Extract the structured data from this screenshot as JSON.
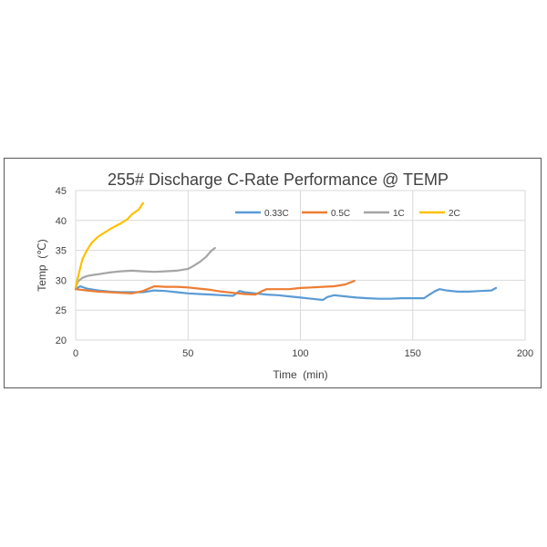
{
  "chart_data": {
    "type": "line",
    "title": "255#  Discharge C-Rate Performance @ TEMP",
    "xlabel": "Time  (min)",
    "ylabel": "Temp  (℃)",
    "xlim": [
      0,
      200
    ],
    "ylim": [
      20,
      45
    ],
    "xticks": [
      0,
      50,
      100,
      150,
      200
    ],
    "yticks": [
      20,
      25,
      30,
      35,
      40,
      45
    ],
    "grid": true,
    "legend_position": "top-right",
    "series": [
      {
        "name": "0.33C",
        "color": "#5B9BD5",
        "x": [
          0,
          2,
          5,
          10,
          15,
          20,
          25,
          30,
          35,
          40,
          45,
          50,
          55,
          60,
          65,
          70,
          73,
          75,
          80,
          85,
          90,
          95,
          100,
          105,
          110,
          112,
          115,
          120,
          125,
          130,
          135,
          140,
          145,
          150,
          155,
          157,
          160,
          162,
          165,
          170,
          175,
          180,
          185,
          187
        ],
        "y": [
          28.5,
          29.0,
          28.6,
          28.3,
          28.1,
          28.0,
          28.0,
          28.0,
          28.3,
          28.2,
          28.0,
          27.8,
          27.7,
          27.6,
          27.5,
          27.4,
          28.2,
          28.0,
          27.8,
          27.6,
          27.5,
          27.3,
          27.1,
          26.9,
          26.7,
          27.2,
          27.5,
          27.3,
          27.1,
          27.0,
          26.9,
          26.9,
          27.0,
          27.0,
          27.0,
          27.5,
          28.2,
          28.5,
          28.3,
          28.1,
          28.1,
          28.2,
          28.3,
          28.7
        ]
      },
      {
        "name": "0.5C",
        "color": "#ED7D31",
        "x": [
          0,
          5,
          10,
          15,
          20,
          25,
          30,
          35,
          40,
          45,
          50,
          55,
          60,
          65,
          70,
          75,
          80,
          83,
          85,
          90,
          95,
          100,
          105,
          110,
          115,
          120,
          122,
          124
        ],
        "y": [
          28.5,
          28.3,
          28.1,
          28.0,
          27.9,
          27.8,
          28.2,
          29.0,
          28.9,
          28.9,
          28.8,
          28.6,
          28.4,
          28.1,
          27.9,
          27.7,
          27.6,
          28.2,
          28.5,
          28.5,
          28.5,
          28.7,
          28.8,
          28.9,
          29.0,
          29.3,
          29.6,
          29.9
        ]
      },
      {
        "name": "1C",
        "color": "#A5A5A5",
        "x": [
          0,
          1,
          3,
          5,
          8,
          10,
          15,
          20,
          25,
          30,
          35,
          40,
          45,
          50,
          52,
          55,
          58,
          60,
          62
        ],
        "y": [
          28.8,
          29.8,
          30.4,
          30.7,
          30.9,
          31.0,
          31.3,
          31.5,
          31.6,
          31.5,
          31.4,
          31.5,
          31.6,
          31.9,
          32.3,
          33.0,
          33.9,
          34.8,
          35.4
        ]
      },
      {
        "name": "2C",
        "color": "#FFC000",
        "x": [
          0,
          1,
          2,
          3,
          5,
          7,
          10,
          13,
          16,
          20,
          23,
          25,
          28,
          30
        ],
        "y": [
          28.8,
          30.5,
          32.0,
          33.5,
          35.0,
          36.2,
          37.3,
          38.0,
          38.7,
          39.5,
          40.2,
          41.0,
          41.8,
          42.9
        ]
      }
    ]
  }
}
